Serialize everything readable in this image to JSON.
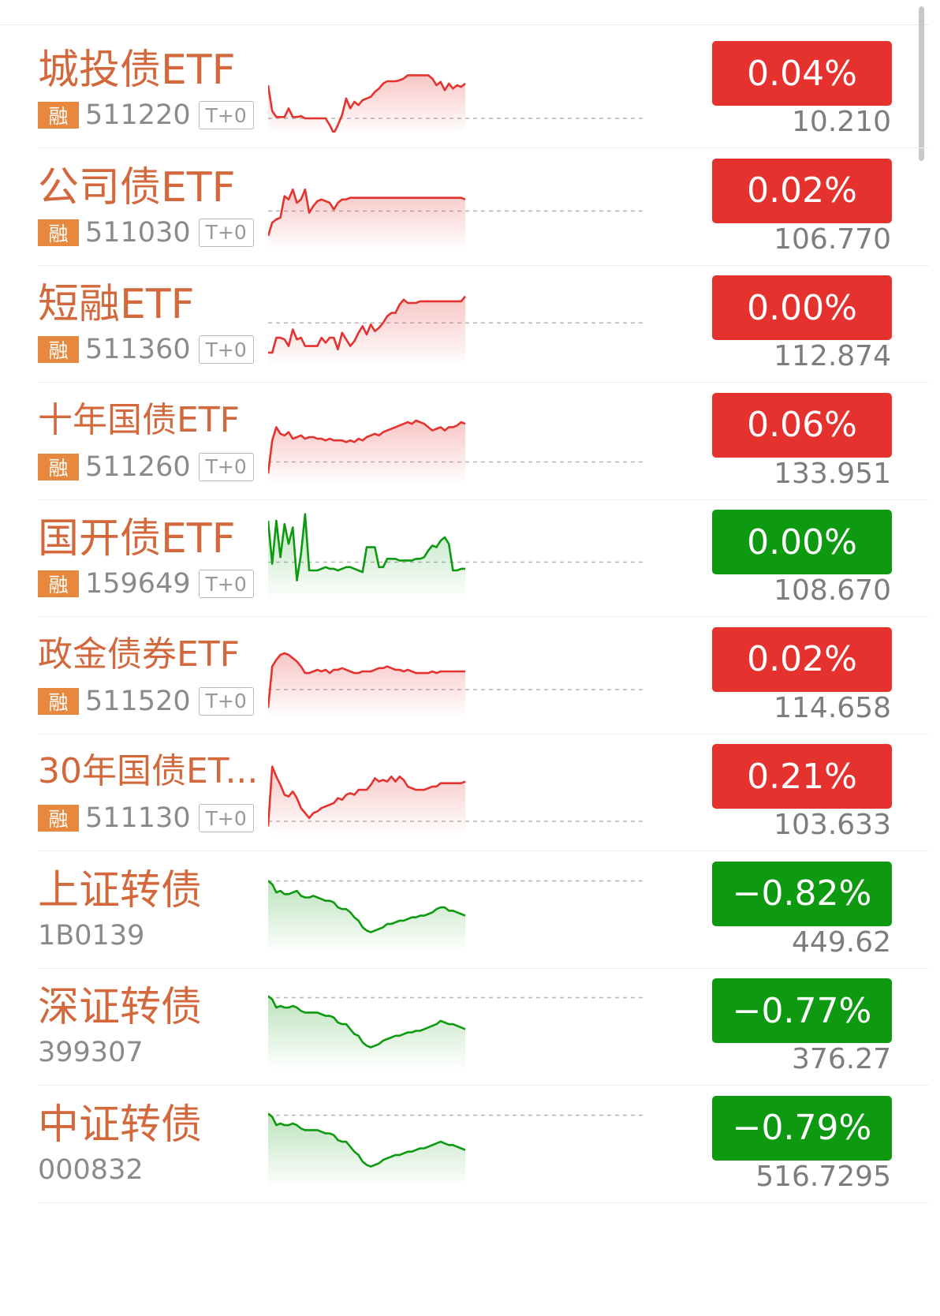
{
  "colors": {
    "up": "#e5322f",
    "down": "#0d9a10",
    "name": "#d2683b",
    "badge": "#e8883e"
  },
  "items": [
    {
      "name": "城投债ETF",
      "badge": "融",
      "code": "511220",
      "tag": "T+0",
      "change": "0.04%",
      "price": "10.210",
      "trend": "up",
      "spark": [
        0.0,
        -0.78,
        -0.96,
        -0.96,
        -0.96,
        -0.7,
        -0.96,
        -0.96,
        -0.93,
        -1.0,
        -1.0,
        -1.0,
        -1.0,
        -1.0,
        -1.0,
        -1.2,
        -1.45,
        -1.2,
        -0.9,
        -0.4,
        -0.7,
        -0.5,
        -0.6,
        -0.45,
        -0.4,
        -0.35,
        -0.2,
        -0.1,
        0.05,
        0.12,
        0.12,
        0.12,
        0.15,
        0.2,
        0.3,
        0.3,
        0.3,
        0.3,
        0.3,
        0.3,
        0.2,
        0.0,
        0.1,
        -0.15,
        0.05,
        -0.1,
        0.0,
        -0.05,
        0.05
      ],
      "baseline": -1.0
    },
    {
      "name": "公司债ETF",
      "badge": "融",
      "code": "511030",
      "tag": "T+0",
      "change": "0.02%",
      "price": "106.770",
      "trend": "up",
      "spark": [
        -1.0,
        -0.6,
        -0.5,
        -0.45,
        0.2,
        0.1,
        0.4,
        0.0,
        0.1,
        0.4,
        -0.3,
        -0.1,
        0.05,
        0.1,
        0.05,
        0.0,
        -0.2,
        0.0,
        0.1,
        0.1,
        0.15,
        0.15,
        0.15,
        0.15,
        0.15,
        0.15,
        0.15,
        0.15,
        0.15,
        0.15,
        0.15,
        0.15,
        0.15,
        0.15,
        0.15,
        0.15,
        0.15,
        0.15,
        0.15,
        0.15,
        0.15,
        0.15,
        0.15,
        0.15,
        0.15,
        0.15,
        0.15,
        0.15,
        0.1
      ],
      "baseline": -0.25
    },
    {
      "name": "短融ETF",
      "badge": "融",
      "code": "511360",
      "tag": "T+0",
      "change": "0.00%",
      "price": "112.874",
      "trend": "up",
      "spark": [
        -1.0,
        -1.0,
        -0.55,
        -0.55,
        -0.6,
        -0.8,
        -0.3,
        -0.6,
        -0.55,
        -0.8,
        -0.8,
        -0.8,
        -0.8,
        -0.55,
        -0.7,
        -0.55,
        -0.55,
        -0.9,
        -0.4,
        -0.6,
        -0.8,
        -0.65,
        -0.4,
        -0.2,
        -0.45,
        -0.15,
        -0.35,
        -0.25,
        -0.1,
        0.1,
        0.2,
        0.2,
        0.45,
        0.6,
        0.5,
        0.5,
        0.5,
        0.55,
        0.55,
        0.55,
        0.55,
        0.55,
        0.55,
        0.55,
        0.55,
        0.55,
        0.55,
        0.55,
        0.7
      ],
      "baseline": -0.1
    },
    {
      "name": "十年国债ETF",
      "badge": "融",
      "code": "511260",
      "tag": "T+0",
      "change": "0.06%",
      "price": "133.951",
      "trend": "up",
      "spark": [
        -1.1,
        -0.1,
        0.3,
        0.1,
        0.05,
        0.15,
        -0.05,
        0.0,
        0.05,
        -0.05,
        0.0,
        0.0,
        -0.05,
        -0.05,
        -0.1,
        -0.05,
        -0.1,
        -0.1,
        -0.1,
        -0.15,
        -0.1,
        -0.15,
        -0.05,
        -0.1,
        0.0,
        0.05,
        0.1,
        0.05,
        0.15,
        0.2,
        0.25,
        0.3,
        0.35,
        0.4,
        0.45,
        0.4,
        0.5,
        0.45,
        0.4,
        0.3,
        0.2,
        0.25,
        0.3,
        0.2,
        0.3,
        0.3,
        0.35,
        0.45,
        0.4
      ],
      "baseline": -0.75
    },
    {
      "name": "国开债ETF",
      "badge": "融",
      "code": "159649",
      "tag": "T+0",
      "change": "0.00%",
      "price": "108.670",
      "trend": "down",
      "spark": [
        1.0,
        -0.3,
        1.0,
        -0.1,
        0.9,
        0.3,
        0.8,
        -0.8,
        0.0,
        1.2,
        -0.5,
        -0.5,
        -0.5,
        -0.45,
        -0.4,
        -0.45,
        -0.45,
        -0.5,
        -0.45,
        -0.4,
        -0.4,
        -0.45,
        -0.5,
        -0.55,
        0.2,
        0.2,
        0.2,
        -0.4,
        -0.4,
        -0.15,
        -0.15,
        -0.15,
        -0.2,
        -0.2,
        -0.2,
        -0.2,
        -0.15,
        -0.15,
        -0.1,
        0.1,
        0.25,
        0.2,
        0.4,
        0.5,
        0.3,
        -0.5,
        -0.5,
        -0.45,
        -0.45
      ],
      "baseline": -0.25
    },
    {
      "name": "政金债券ETF",
      "badge": "融",
      "code": "511520",
      "tag": "T+0",
      "change": "0.02%",
      "price": "114.658",
      "trend": "up",
      "spark": [
        -1.1,
        0.15,
        0.35,
        0.5,
        0.55,
        0.5,
        0.4,
        0.3,
        0.15,
        -0.05,
        -0.05,
        0.0,
        0.05,
        0.0,
        0.05,
        -0.05,
        0.05,
        0.05,
        0.1,
        0.05,
        0.0,
        -0.05,
        -0.05,
        0.0,
        0.0,
        0.0,
        0.05,
        0.1,
        0.1,
        0.15,
        0.1,
        0.05,
        0.05,
        0.0,
        0.05,
        0.0,
        -0.05,
        -0.05,
        -0.05,
        -0.05,
        0.0,
        -0.05,
        0.0,
        0.0,
        0.0,
        0.0,
        0.0,
        0.0,
        0.0
      ],
      "baseline": -0.55
    },
    {
      "name": "30年国债ET...",
      "badge": "融",
      "code": "511130",
      "tag": "T+0",
      "change": "0.21%",
      "price": "103.633",
      "trend": "up",
      "spark": [
        -1.15,
        0.65,
        0.35,
        0.1,
        -0.2,
        -0.25,
        -0.1,
        -0.3,
        -0.6,
        -0.75,
        -0.9,
        -0.75,
        -0.7,
        -0.6,
        -0.55,
        -0.5,
        -0.45,
        -0.3,
        -0.35,
        -0.2,
        -0.15,
        -0.2,
        -0.05,
        -0.05,
        -0.05,
        0.1,
        0.3,
        0.2,
        0.25,
        0.2,
        0.35,
        0.2,
        0.35,
        0.25,
        0.05,
        0.0,
        -0.05,
        -0.05,
        -0.05,
        0.0,
        0.05,
        0.05,
        0.15,
        0.15,
        0.15,
        0.15,
        0.15,
        0.15,
        0.2
      ],
      "baseline": -1.0
    },
    {
      "name": "上证转债",
      "badge": "",
      "code": "1B0139",
      "tag": "",
      "change": "-0.82%",
      "price": "449.62",
      "trend": "down",
      "spark": [
        0.75,
        0.65,
        0.4,
        0.45,
        0.35,
        0.35,
        0.4,
        0.45,
        0.3,
        0.25,
        0.25,
        0.3,
        0.25,
        0.2,
        0.15,
        0.15,
        0.1,
        -0.05,
        -0.1,
        -0.1,
        -0.2,
        -0.35,
        -0.45,
        -0.65,
        -0.75,
        -0.8,
        -0.75,
        -0.7,
        -0.65,
        -0.55,
        -0.55,
        -0.5,
        -0.45,
        -0.45,
        -0.4,
        -0.35,
        -0.35,
        -0.3,
        -0.3,
        -0.25,
        -0.2,
        -0.1,
        -0.05,
        -0.05,
        -0.15,
        -0.15,
        -0.2,
        -0.25,
        -0.3
      ],
      "baseline": 0.75
    },
    {
      "name": "深证转债",
      "badge": "",
      "code": "399307",
      "tag": "",
      "change": "-0.77%",
      "price": "376.27",
      "trend": "down",
      "spark": [
        0.8,
        0.7,
        0.45,
        0.5,
        0.45,
        0.45,
        0.5,
        0.45,
        0.35,
        0.3,
        0.3,
        0.3,
        0.3,
        0.25,
        0.2,
        0.2,
        0.15,
        0.0,
        -0.05,
        -0.05,
        -0.2,
        -0.35,
        -0.4,
        -0.6,
        -0.7,
        -0.75,
        -0.7,
        -0.65,
        -0.55,
        -0.5,
        -0.45,
        -0.4,
        -0.4,
        -0.35,
        -0.3,
        -0.3,
        -0.25,
        -0.25,
        -0.2,
        -0.15,
        -0.1,
        -0.05,
        0.05,
        0.0,
        -0.05,
        -0.05,
        -0.1,
        -0.15,
        -0.2
      ],
      "baseline": 0.75
    },
    {
      "name": "中证转债",
      "badge": "",
      "code": "000832",
      "tag": "",
      "change": "-0.79%",
      "price": "516.7295",
      "trend": "down",
      "spark": [
        0.8,
        0.7,
        0.45,
        0.5,
        0.45,
        0.45,
        0.5,
        0.45,
        0.35,
        0.3,
        0.3,
        0.3,
        0.3,
        0.25,
        0.2,
        0.2,
        0.15,
        0.0,
        -0.05,
        -0.05,
        -0.2,
        -0.35,
        -0.45,
        -0.65,
        -0.75,
        -0.8,
        -0.75,
        -0.7,
        -0.6,
        -0.55,
        -0.5,
        -0.45,
        -0.45,
        -0.4,
        -0.35,
        -0.35,
        -0.3,
        -0.25,
        -0.25,
        -0.2,
        -0.15,
        -0.1,
        -0.05,
        -0.1,
        -0.15,
        -0.15,
        -0.2,
        -0.25,
        -0.3
      ],
      "baseline": 0.75
    }
  ]
}
